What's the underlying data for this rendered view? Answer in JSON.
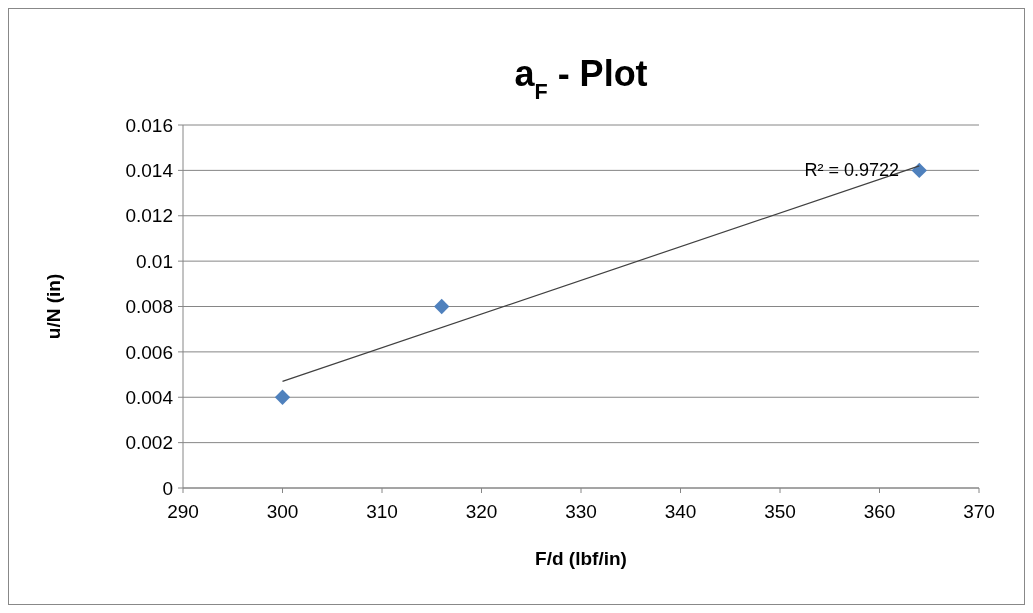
{
  "chart_data": {
    "type": "scatter",
    "title": "a$_{F}$ - Plot",
    "xlabel": "F/d (lbf/in)",
    "ylabel": "u/N (in)",
    "xlim": [
      290,
      370
    ],
    "xticks": [
      290,
      300,
      310,
      320,
      330,
      340,
      350,
      360,
      370
    ],
    "ylim": [
      0,
      0.016
    ],
    "yticks": [
      0,
      0.002,
      0.004,
      0.006,
      0.008,
      {
        "value": 0.01,
        "label": "0.01"
      },
      0.012,
      0.014,
      0.016
    ],
    "grid": "y",
    "marker": "diamond",
    "series": [
      {
        "color": "#4f81bd",
        "x": [
          300,
          316,
          364
        ],
        "values": [
          0.004,
          0.008,
          0.014
        ]
      },
      {
        "type": "line",
        "color": "#404040",
        "x": [
          300,
          364
        ],
        "values": [
          0.0047,
          0.0142
        ],
        "marker": "none",
        "line_style": "solid"
      }
    ],
    "annotations": [
      "R² = 0.9722"
    ]
  }
}
